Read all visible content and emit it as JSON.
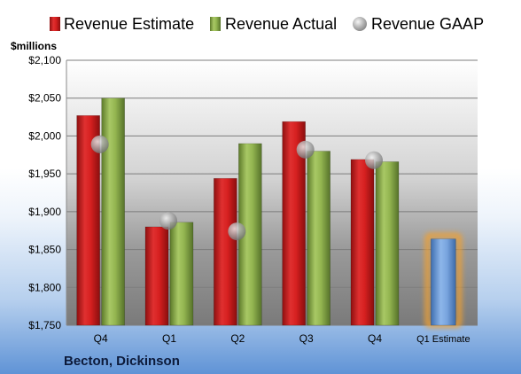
{
  "chart_data": {
    "type": "bar",
    "company": "Becton, Dickinson",
    "ylabel": "$millions",
    "ylim": [
      1750,
      2100
    ],
    "yticks": [
      1750,
      1800,
      1850,
      1900,
      1950,
      2000,
      2050,
      2100
    ],
    "ytick_labels": [
      "$1,750",
      "$1,800",
      "$1,850",
      "$1,900",
      "$1,950",
      "$2,000",
      "$2,050",
      "$2,100"
    ],
    "categories": [
      "Q4",
      "Q1",
      "Q2",
      "Q3",
      "Q4",
      "Q1 Estimate"
    ],
    "grid": true,
    "legend_position": "top",
    "series": [
      {
        "name": "Revenue Estimate",
        "marker": "bar",
        "color": "#d62728",
        "values": [
          2027,
          1880,
          1944,
          2019,
          1969,
          null
        ]
      },
      {
        "name": "Revenue Actual",
        "marker": "bar",
        "color": "#8cb04a",
        "values": [
          2050,
          1886,
          1990,
          1980,
          1966,
          null
        ]
      },
      {
        "name": "Revenue GAAP",
        "marker": "circle",
        "color": "#b0b0b0",
        "values": [
          1989,
          1888,
          1874,
          1982,
          1968,
          null
        ]
      }
    ],
    "estimate": {
      "category": "Q1 Estimate",
      "value": 1864,
      "color": "#6f9fd8",
      "glow": "#f0a030"
    }
  }
}
